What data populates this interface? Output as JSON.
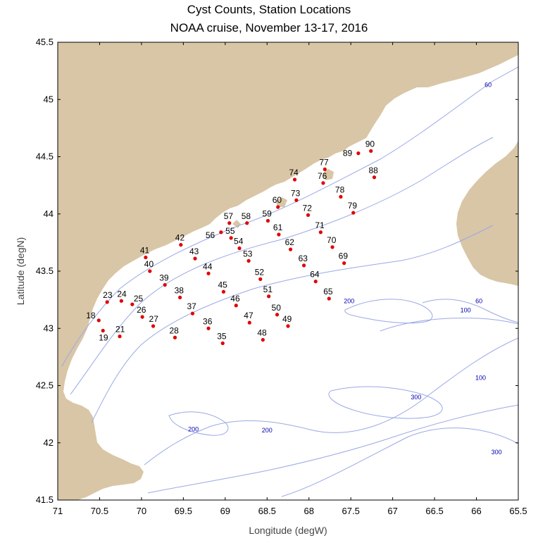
{
  "title": "Cyst Counts, Station Locations",
  "subtitle": "NOAA cruise, November 13-17, 2016",
  "xlabel": "Longitude (degW)",
  "ylabel": "Latitude (degN)",
  "colors": {
    "land": "#d8c6a6",
    "contour": "#9aa8e6",
    "station": "#e00000",
    "contour_label": "#0000b0"
  },
  "chart_data": {
    "type": "scatter",
    "xlim": [
      71,
      65.5
    ],
    "ylim": [
      41.5,
      45.5
    ],
    "x_ticks": [
      "71",
      "70.5",
      "70",
      "69.5",
      "69",
      "68.5",
      "68",
      "67.5",
      "67",
      "66.5",
      "66",
      "65.5"
    ],
    "y_ticks": [
      "41.5",
      "42",
      "42.5",
      "43",
      "43.5",
      "44",
      "44.5",
      "45",
      "45.5"
    ],
    "contour_labels": [
      {
        "text": "60",
        "lon": 65.86,
        "lat": 45.11
      },
      {
        "text": "60",
        "lon": 65.97,
        "lat": 43.22
      },
      {
        "text": "100",
        "lon": 66.13,
        "lat": 43.14
      },
      {
        "text": "100",
        "lon": 65.95,
        "lat": 42.55
      },
      {
        "text": "200",
        "lon": 67.52,
        "lat": 43.22
      },
      {
        "text": "200",
        "lon": 69.38,
        "lat": 42.1
      },
      {
        "text": "200",
        "lon": 68.5,
        "lat": 42.09
      },
      {
        "text": "300",
        "lon": 66.72,
        "lat": 42.38
      },
      {
        "text": "300",
        "lon": 65.76,
        "lat": 41.9
      }
    ],
    "stations": [
      {
        "id": "18",
        "lon": 70.51,
        "lat": 43.07,
        "lx": -18,
        "ly": -3
      },
      {
        "id": "19",
        "lon": 70.46,
        "lat": 42.98,
        "lx": -6,
        "ly": 14
      },
      {
        "id": "21",
        "lon": 70.26,
        "lat": 42.93,
        "lx": -6,
        "ly": -6
      },
      {
        "id": "23",
        "lon": 70.41,
        "lat": 43.23,
        "lx": -6,
        "ly": -6
      },
      {
        "id": "24",
        "lon": 70.24,
        "lat": 43.24,
        "lx": -6,
        "ly": -6
      },
      {
        "id": "25",
        "lon": 70.11,
        "lat": 43.21,
        "lx": 2,
        "ly": -4
      },
      {
        "id": "26",
        "lon": 69.99,
        "lat": 43.1,
        "lx": -8,
        "ly": -6
      },
      {
        "id": "27",
        "lon": 69.86,
        "lat": 43.02,
        "lx": -6,
        "ly": -6
      },
      {
        "id": "28",
        "lon": 69.6,
        "lat": 42.92,
        "lx": -8,
        "ly": -6
      },
      {
        "id": "35",
        "lon": 69.03,
        "lat": 42.87,
        "lx": -8,
        "ly": -6
      },
      {
        "id": "36",
        "lon": 69.2,
        "lat": 43.0,
        "lx": -8,
        "ly": -6
      },
      {
        "id": "37",
        "lon": 69.39,
        "lat": 43.13,
        "lx": -8,
        "ly": -6
      },
      {
        "id": "38",
        "lon": 69.54,
        "lat": 43.27,
        "lx": -8,
        "ly": -6
      },
      {
        "id": "39",
        "lon": 69.72,
        "lat": 43.38,
        "lx": -8,
        "ly": -6
      },
      {
        "id": "40",
        "lon": 69.9,
        "lat": 43.5,
        "lx": -8,
        "ly": -6
      },
      {
        "id": "41",
        "lon": 69.95,
        "lat": 43.62,
        "lx": -8,
        "ly": -6
      },
      {
        "id": "42",
        "lon": 69.53,
        "lat": 43.73,
        "lx": -8,
        "ly": -6
      },
      {
        "id": "43",
        "lon": 69.36,
        "lat": 43.61,
        "lx": -8,
        "ly": -6
      },
      {
        "id": "44",
        "lon": 69.2,
        "lat": 43.48,
        "lx": -8,
        "ly": -6
      },
      {
        "id": "45",
        "lon": 69.02,
        "lat": 43.32,
        "lx": -8,
        "ly": -6
      },
      {
        "id": "46",
        "lon": 68.87,
        "lat": 43.2,
        "lx": -8,
        "ly": -6
      },
      {
        "id": "47",
        "lon": 68.71,
        "lat": 43.05,
        "lx": -8,
        "ly": -6
      },
      {
        "id": "48",
        "lon": 68.55,
        "lat": 42.9,
        "lx": -8,
        "ly": -6
      },
      {
        "id": "49",
        "lon": 68.25,
        "lat": 43.02,
        "lx": -8,
        "ly": -6
      },
      {
        "id": "50",
        "lon": 68.38,
        "lat": 43.12,
        "lx": -8,
        "ly": -6
      },
      {
        "id": "51",
        "lon": 68.48,
        "lat": 43.28,
        "lx": -8,
        "ly": -6
      },
      {
        "id": "52",
        "lon": 68.58,
        "lat": 43.43,
        "lx": -8,
        "ly": -6
      },
      {
        "id": "53",
        "lon": 68.72,
        "lat": 43.59,
        "lx": -8,
        "ly": -6
      },
      {
        "id": "54",
        "lon": 68.83,
        "lat": 43.7,
        "lx": -8,
        "ly": -6
      },
      {
        "id": "55",
        "lon": 68.93,
        "lat": 43.79,
        "lx": -8,
        "ly": -6
      },
      {
        "id": "56",
        "lon": 69.05,
        "lat": 43.84,
        "lx": -22,
        "ly": 8
      },
      {
        "id": "57",
        "lon": 68.95,
        "lat": 43.92,
        "lx": -8,
        "ly": -6
      },
      {
        "id": "58",
        "lon": 68.74,
        "lat": 43.92,
        "lx": -8,
        "ly": -6
      },
      {
        "id": "59",
        "lon": 68.49,
        "lat": 43.94,
        "lx": -8,
        "ly": -6
      },
      {
        "id": "60",
        "lon": 68.37,
        "lat": 44.06,
        "lx": -8,
        "ly": -6
      },
      {
        "id": "61",
        "lon": 68.36,
        "lat": 43.82,
        "lx": -8,
        "ly": -6
      },
      {
        "id": "62",
        "lon": 68.22,
        "lat": 43.69,
        "lx": -8,
        "ly": -6
      },
      {
        "id": "63",
        "lon": 68.06,
        "lat": 43.55,
        "lx": -8,
        "ly": -6
      },
      {
        "id": "64",
        "lon": 67.92,
        "lat": 43.41,
        "lx": -8,
        "ly": -6
      },
      {
        "id": "65",
        "lon": 67.76,
        "lat": 43.26,
        "lx": -8,
        "ly": -6
      },
      {
        "id": "69",
        "lon": 67.58,
        "lat": 43.57,
        "lx": -8,
        "ly": -6
      },
      {
        "id": "70",
        "lon": 67.72,
        "lat": 43.71,
        "lx": -8,
        "ly": -6
      },
      {
        "id": "71",
        "lon": 67.86,
        "lat": 43.84,
        "lx": -8,
        "ly": -6
      },
      {
        "id": "72",
        "lon": 68.01,
        "lat": 43.99,
        "lx": -8,
        "ly": -6
      },
      {
        "id": "73",
        "lon": 68.15,
        "lat": 44.12,
        "lx": -8,
        "ly": -6
      },
      {
        "id": "74",
        "lon": 68.17,
        "lat": 44.3,
        "lx": -8,
        "ly": -6
      },
      {
        "id": "76",
        "lon": 67.83,
        "lat": 44.27,
        "lx": -8,
        "ly": -6
      },
      {
        "id": "77",
        "lon": 67.81,
        "lat": 44.39,
        "lx": -8,
        "ly": -6
      },
      {
        "id": "78",
        "lon": 67.62,
        "lat": 44.15,
        "lx": -8,
        "ly": -6
      },
      {
        "id": "79",
        "lon": 67.47,
        "lat": 44.01,
        "lx": -8,
        "ly": -6
      },
      {
        "id": "88",
        "lon": 67.22,
        "lat": 44.32,
        "lx": -8,
        "ly": -6
      },
      {
        "id": "89",
        "lon": 67.41,
        "lat": 44.53,
        "lx": -22,
        "ly": 4
      },
      {
        "id": "90",
        "lon": 67.26,
        "lat": 44.55,
        "lx": -8,
        "ly": -6
      }
    ]
  }
}
